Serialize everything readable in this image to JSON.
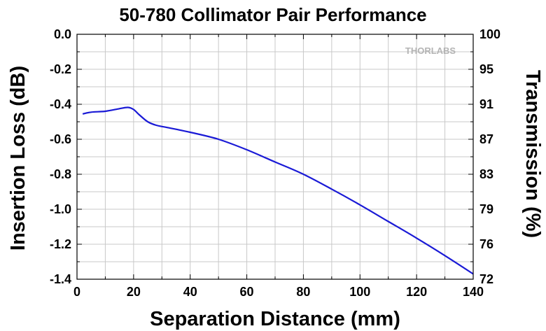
{
  "chart_data": {
    "type": "line",
    "title": "50-780 Collimator Pair Performance",
    "xlabel": "Separation Distance (mm)",
    "ylabel": "Insertion Loss (dB)",
    "y2label": "Transmission (%)",
    "xlim": [
      0,
      140
    ],
    "ylim": [
      -1.4,
      0.0
    ],
    "x_ticks": [
      "0",
      "20",
      "40",
      "60",
      "80",
      "100",
      "120",
      "140"
    ],
    "y_ticks": [
      "0.0",
      "-0.2",
      "-0.4",
      "-0.6",
      "-0.8",
      "-1.0",
      "-1.2",
      "-1.4"
    ],
    "y2_ticks": [
      "100",
      "95",
      "91",
      "87",
      "83",
      "79",
      "76",
      "72"
    ],
    "grid": true,
    "watermark": "THORLABS",
    "series": [
      {
        "color": "#1a1ad6",
        "x": [
          2,
          5,
          10,
          15,
          18,
          20,
          22,
          25,
          28,
          32,
          40,
          50,
          60,
          70,
          80,
          90,
          100,
          110,
          120,
          130,
          140
        ],
        "y": [
          -0.455,
          -0.445,
          -0.44,
          -0.425,
          -0.418,
          -0.43,
          -0.46,
          -0.5,
          -0.52,
          -0.533,
          -0.56,
          -0.6,
          -0.66,
          -0.73,
          -0.8,
          -0.885,
          -0.975,
          -1.07,
          -1.165,
          -1.265,
          -1.37
        ]
      }
    ]
  }
}
